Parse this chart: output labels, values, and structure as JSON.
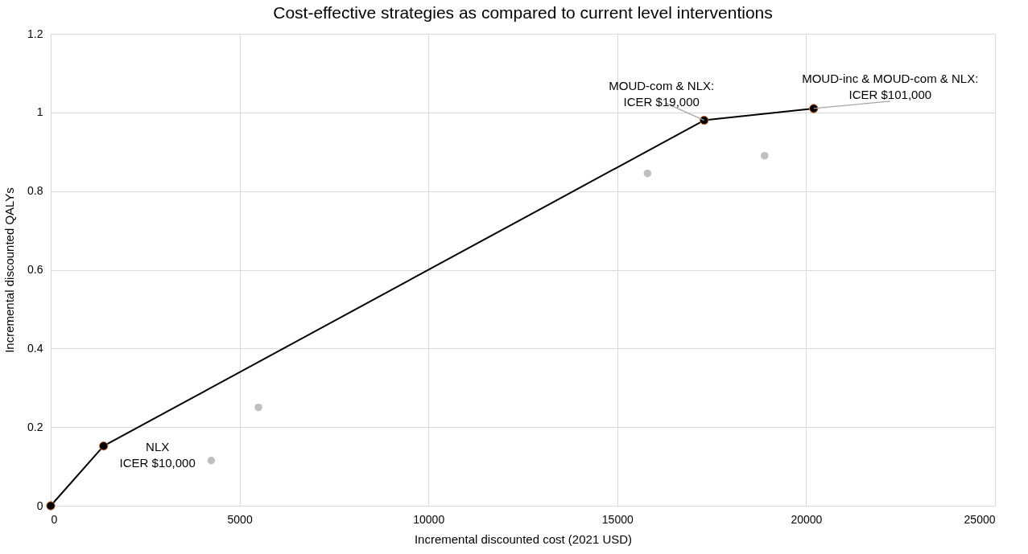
{
  "chart_data": {
    "type": "scatter",
    "title": "Cost-effective strategies as compared to current level interventions",
    "xlabel": "Incremental discounted cost (2021 USD)",
    "ylabel": "Incremental discounted QALYs",
    "xlim": [
      0,
      25000
    ],
    "xticks": [
      0,
      5000,
      10000,
      15000,
      20000,
      25000
    ],
    "ylim": [
      0,
      1.2
    ],
    "yticks": [
      0,
      0.2,
      0.4,
      0.6,
      0.8,
      1,
      1.2
    ],
    "grid": true,
    "marker": "circle",
    "series": [
      {
        "type": "line",
        "color": "#000000",
        "x": [
          0,
          1400,
          17300,
          20200
        ],
        "values": [
          0,
          0.152,
          0.98,
          1.01
        ]
      },
      {
        "type": "scatter",
        "color": "#bfbfbf",
        "x": [
          4250,
          5500,
          15800,
          18900
        ],
        "values": [
          0.115,
          0.25,
          0.845,
          0.89
        ]
      }
    ],
    "annotations": [
      {
        "text": "NLX\nICER $10,000",
        "x": 1400,
        "y": 0.152
      },
      {
        "text": "MOUD-com & NLX:\nICER $19,000",
        "x": 17300,
        "y": 0.98
      },
      {
        "text": "MOUD-inc & MOUD-com & NLX:\nICER $101,000",
        "x": 20200,
        "y": 1.01
      }
    ]
  }
}
